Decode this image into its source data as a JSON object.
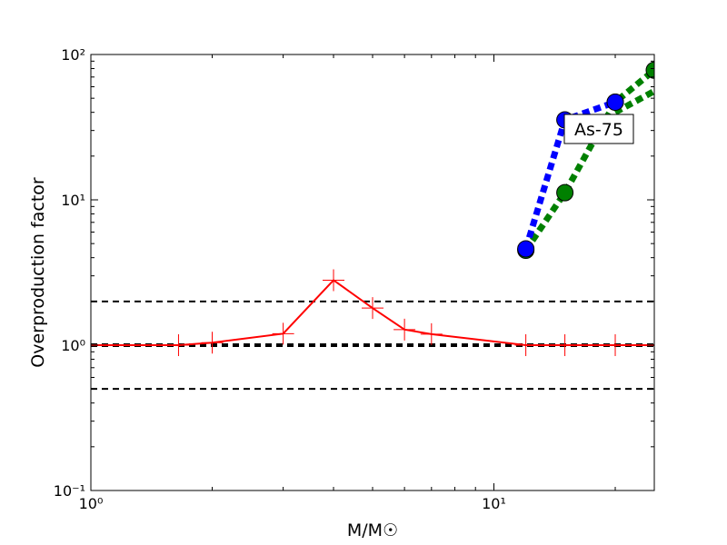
{
  "chart_data": {
    "type": "line",
    "xlabel": "M/M☉",
    "ylabel": "Overproduction factor",
    "xscale": "log",
    "yscale": "log",
    "xlim": [
      1,
      25
    ],
    "ylim": [
      0.1,
      100
    ],
    "xticks": [
      {
        "value": 1,
        "label": "10⁰"
      },
      {
        "value": 10,
        "label": "10¹"
      }
    ],
    "yticks": [
      {
        "value": 0.1,
        "label": "10⁻¹"
      },
      {
        "value": 1,
        "label": "10⁰"
      },
      {
        "value": 10,
        "label": "10¹"
      },
      {
        "value": 100,
        "label": "10²"
      }
    ],
    "hlines": [
      {
        "value": 2,
        "color": "#000000",
        "width": 2
      },
      {
        "value": 1,
        "color": "#000000",
        "width": 4
      },
      {
        "value": 0.5,
        "color": "#000000",
        "width": 2
      }
    ],
    "series": [
      {
        "color": "#ff0000",
        "style": "solid",
        "marker": "plus",
        "x": [
          1,
          1.65,
          2,
          3,
          4,
          5,
          6,
          7,
          12,
          15,
          20,
          25
        ],
        "values": [
          1.0,
          1.0,
          1.04,
          1.2,
          2.8,
          1.8,
          1.28,
          1.19,
          1.0,
          1.0,
          1.0,
          1.0
        ]
      },
      {
        "color": "#008000",
        "style": "dotted",
        "marker": "circle",
        "x": [
          12,
          15,
          20,
          25
        ],
        "values": [
          4.5,
          11.2,
          47,
          78
        ]
      },
      {
        "color": "#008000",
        "style": "dotted",
        "marker": "none",
        "x": [
          20,
          25
        ],
        "values": [
          40,
          56
        ]
      },
      {
        "color": "#0000ff",
        "style": "dotted",
        "marker": "circle",
        "x": [
          12,
          15,
          20
        ],
        "values": [
          4.6,
          35.5,
          47
        ]
      }
    ],
    "annotation": "As-75"
  }
}
